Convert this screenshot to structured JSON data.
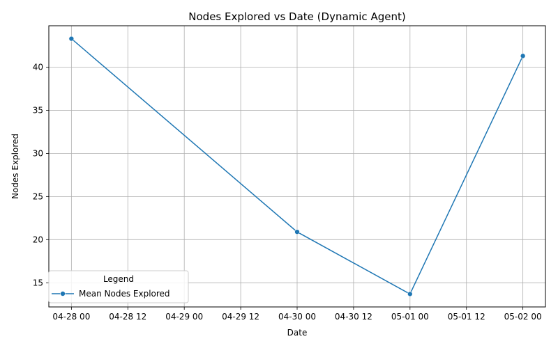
{
  "chart_data": {
    "type": "line",
    "title": "Nodes Explored vs Date (Dynamic Agent)",
    "xlabel": "Date",
    "ylabel": "Nodes Explored",
    "x_ticks": [
      "04-28 00",
      "04-28 12",
      "04-29 00",
      "04-29 12",
      "04-30 00",
      "04-30 12",
      "05-01 00",
      "05-01 12",
      "05-02 00"
    ],
    "y_ticks": [
      "15",
      "20",
      "25",
      "30",
      "35",
      "40"
    ],
    "x": [
      "2024-04-28 00:00",
      "2024-04-30 00:00",
      "2024-05-01 00:00",
      "2024-05-02 00:00"
    ],
    "series": [
      {
        "name": "Mean Nodes Explored",
        "values": [
          43.3,
          20.9,
          13.7,
          41.3
        ],
        "color": "#1f77b4"
      }
    ],
    "ylim": [
      12.2,
      44.8
    ],
    "xlim": [
      "2024-04-27 19:12",
      "2024-05-02 04:48"
    ],
    "grid": true,
    "legend_title": "Legend",
    "legend_position": "lower-left",
    "marker": "circle"
  }
}
